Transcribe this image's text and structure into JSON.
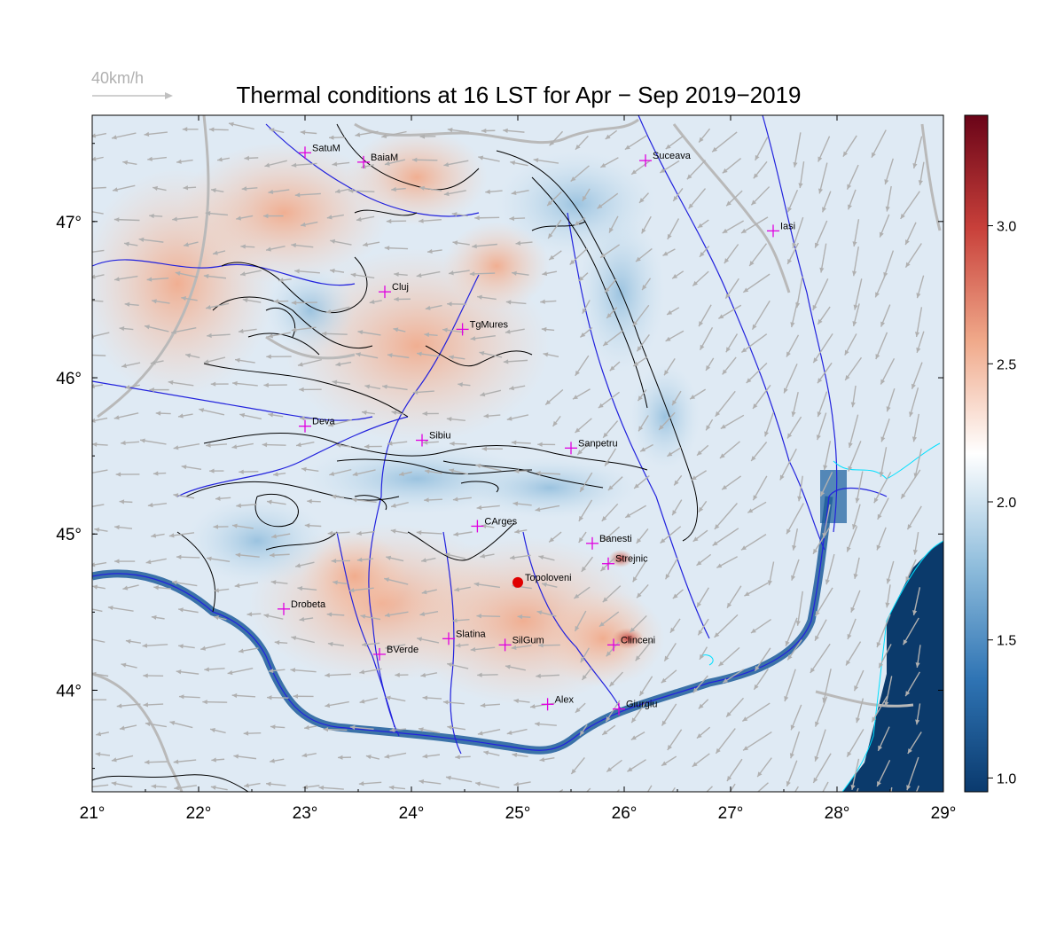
{
  "title": "Thermal conditions at 16 LST for Apr − Sep  2019−2019",
  "wind_reference": {
    "label": "40km/h",
    "speed_kmh": 40
  },
  "map": {
    "lon_range": [
      21,
      29
    ],
    "lat_range": [
      43.35,
      47.68
    ],
    "x_ticks": [
      "21°",
      "22°",
      "23°",
      "24°",
      "25°",
      "26°",
      "27°",
      "28°",
      "29°"
    ],
    "y_ticks": [
      "44°",
      "45°",
      "46°",
      "47°"
    ],
    "highlight_station": "Topoloveni",
    "colors": {
      "station_marker": "#e000e0",
      "highlight": "#e00000",
      "rivers": "#2222dd",
      "roads": "#b8b8b8",
      "contours": "#000000",
      "wind_arrows": "#b0b0b0"
    }
  },
  "colorbar": {
    "range": [
      0.95,
      3.4
    ],
    "ticks": [
      "1.0",
      "1.5",
      "2.0",
      "2.5",
      "3.0"
    ],
    "colors": [
      "#0a3a6e",
      "#2f74b4",
      "#8fbddc",
      "#ffffff",
      "#f0a98a",
      "#c8403a",
      "#6a0418"
    ]
  },
  "stations": [
    {
      "name": "SatuM",
      "lon": 23.0,
      "lat": 47.44
    },
    {
      "name": "BaiaM",
      "lon": 23.55,
      "lat": 47.38
    },
    {
      "name": "Suceava",
      "lon": 26.2,
      "lat": 47.39
    },
    {
      "name": "Iasi",
      "lon": 27.4,
      "lat": 46.94
    },
    {
      "name": "Cluj",
      "lon": 23.75,
      "lat": 46.55
    },
    {
      "name": "TgMures",
      "lon": 24.48,
      "lat": 46.31
    },
    {
      "name": "Deva",
      "lon": 23.0,
      "lat": 45.69
    },
    {
      "name": "Sibiu",
      "lon": 24.1,
      "lat": 45.6
    },
    {
      "name": "Sanpetru",
      "lon": 25.5,
      "lat": 45.55
    },
    {
      "name": "CArges",
      "lon": 24.62,
      "lat": 45.05
    },
    {
      "name": "Banesti",
      "lon": 25.7,
      "lat": 44.94
    },
    {
      "name": "Strejnic",
      "lon": 25.85,
      "lat": 44.81
    },
    {
      "name": "Topoloveni",
      "lon": 25.0,
      "lat": 44.69
    },
    {
      "name": "Drobeta",
      "lon": 22.8,
      "lat": 44.52
    },
    {
      "name": "Slatina",
      "lon": 24.35,
      "lat": 44.33
    },
    {
      "name": "SilGum",
      "lon": 24.88,
      "lat": 44.29
    },
    {
      "name": "Clinceni",
      "lon": 25.9,
      "lat": 44.29
    },
    {
      "name": "BVerde",
      "lon": 23.7,
      "lat": 44.23
    },
    {
      "name": "Alex",
      "lon": 25.28,
      "lat": 43.91
    },
    {
      "name": "Giurgiu",
      "lon": 25.95,
      "lat": 43.88
    }
  ]
}
